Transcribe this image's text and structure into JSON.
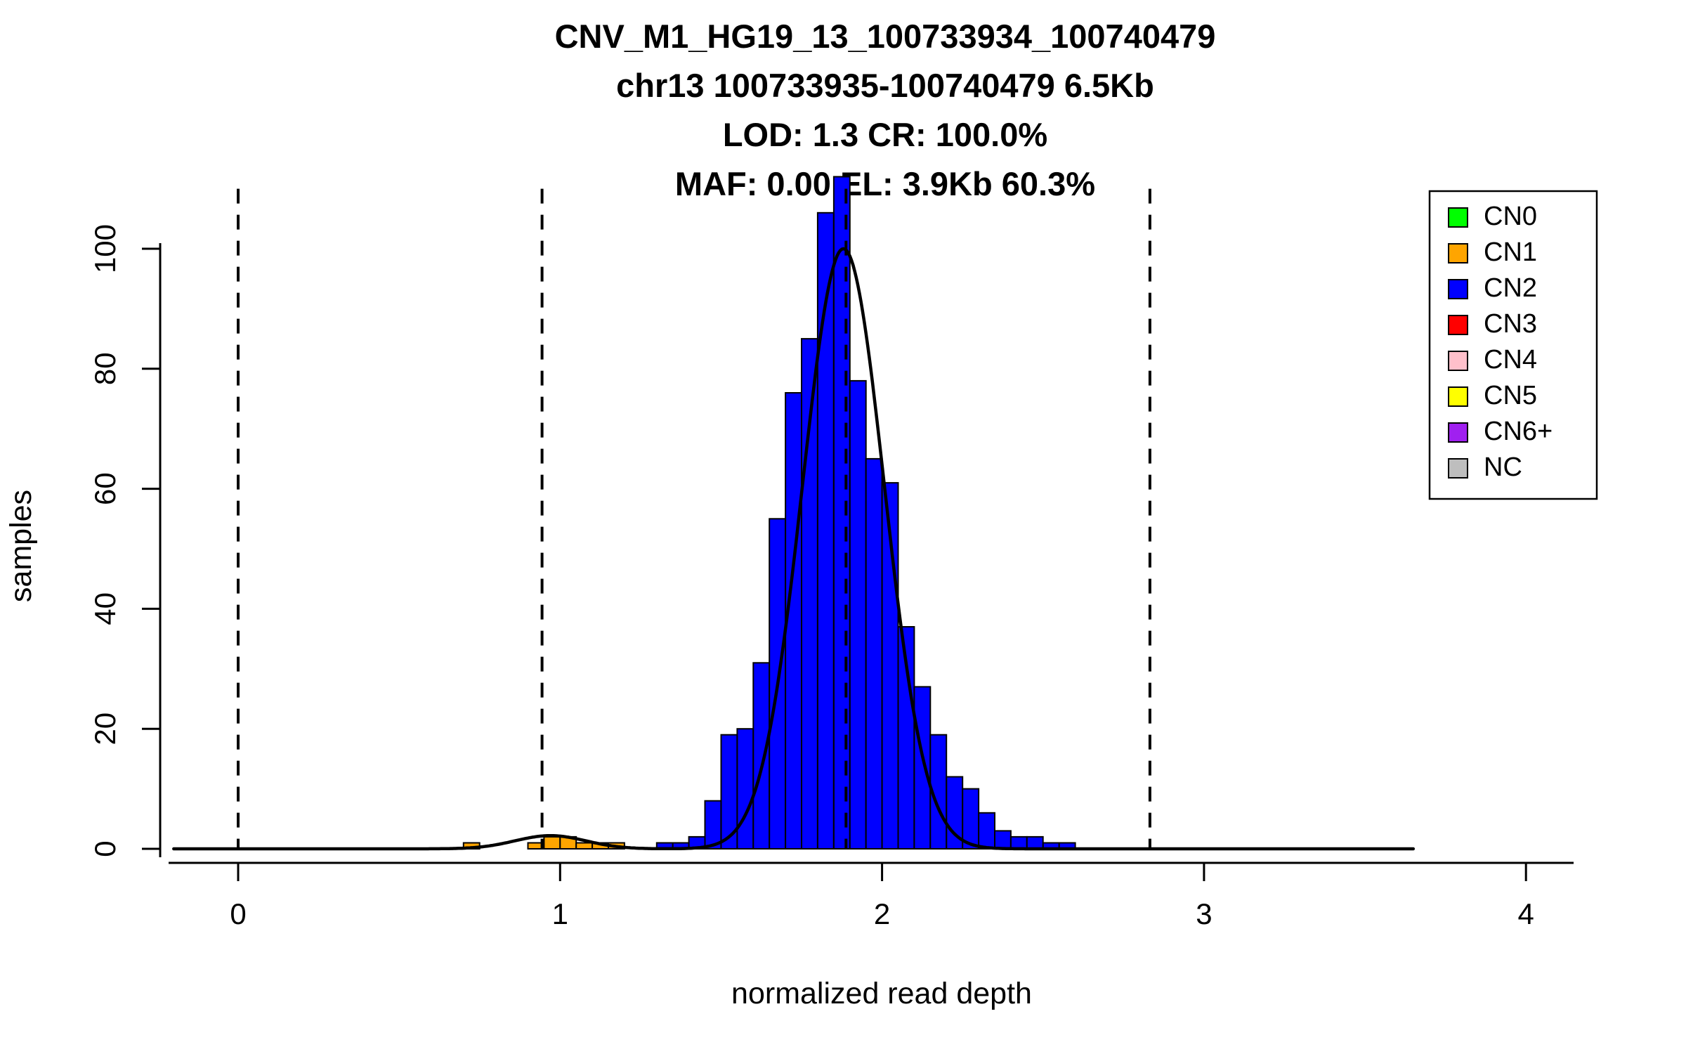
{
  "chart_data": {
    "type": "bar",
    "title_lines": [
      "CNV_M1_HG19_13_100733934_100740479",
      "chr13 100733935-100740479 6.5Kb",
      "LOD: 1.3 CR: 100.0%",
      "MAF: 0.00 EL: 3.9Kb 60.3%"
    ],
    "xlabel": "normalized read depth",
    "ylabel": "samples",
    "xlim": [
      -0.25,
      4.2
    ],
    "ylim": [
      0,
      115
    ],
    "x_ticks": [
      0,
      1,
      2,
      3,
      4
    ],
    "y_ticks": [
      0,
      20,
      40,
      60,
      80,
      100
    ],
    "grid": false,
    "bin_width": 0.05,
    "series": [
      {
        "name": "CN1",
        "color": "#FFA500",
        "bins": [
          [
            0.7,
            1
          ],
          [
            0.9,
            1
          ],
          [
            0.95,
            2
          ],
          [
            1.0,
            2
          ],
          [
            1.05,
            1
          ],
          [
            1.1,
            1
          ],
          [
            1.15,
            1
          ]
        ]
      },
      {
        "name": "CN2",
        "color": "#0000FF",
        "bins": [
          [
            1.3,
            1
          ],
          [
            1.35,
            1
          ],
          [
            1.4,
            2
          ],
          [
            1.45,
            8
          ],
          [
            1.5,
            19
          ],
          [
            1.55,
            20
          ],
          [
            1.6,
            31
          ],
          [
            1.65,
            55
          ],
          [
            1.7,
            76
          ],
          [
            1.75,
            85
          ],
          [
            1.8,
            106
          ],
          [
            1.85,
            112
          ],
          [
            1.9,
            78
          ],
          [
            1.95,
            65
          ],
          [
            2.0,
            61
          ],
          [
            2.05,
            37
          ],
          [
            2.1,
            27
          ],
          [
            2.15,
            19
          ],
          [
            2.2,
            12
          ],
          [
            2.25,
            10
          ],
          [
            2.3,
            6
          ],
          [
            2.35,
            3
          ],
          [
            2.4,
            2
          ],
          [
            2.45,
            2
          ],
          [
            2.5,
            1
          ],
          [
            2.55,
            1
          ]
        ]
      }
    ],
    "dashed_lines_x": [
      0.0,
      0.944,
      1.888,
      2.832
    ],
    "curve": {
      "color": "#000000",
      "x_range": [
        -0.2,
        3.65
      ],
      "components": [
        {
          "amp": 2.2,
          "mean": 0.97,
          "sd": 0.11
        },
        {
          "amp": 100,
          "mean": 1.88,
          "sd": 0.127
        }
      ]
    },
    "legend": {
      "position": "top-right",
      "items": [
        {
          "label": "CN0",
          "color": "#00FF00"
        },
        {
          "label": "CN1",
          "color": "#FFA500"
        },
        {
          "label": "CN2",
          "color": "#0000FF"
        },
        {
          "label": "CN3",
          "color": "#FF0000"
        },
        {
          "label": "CN4",
          "color": "#FFC0CB"
        },
        {
          "label": "CN5",
          "color": "#FFFF00"
        },
        {
          "label": "CN6+",
          "color": "#A020F0"
        },
        {
          "label": "NC",
          "color": "#BEBEBE"
        }
      ]
    }
  }
}
